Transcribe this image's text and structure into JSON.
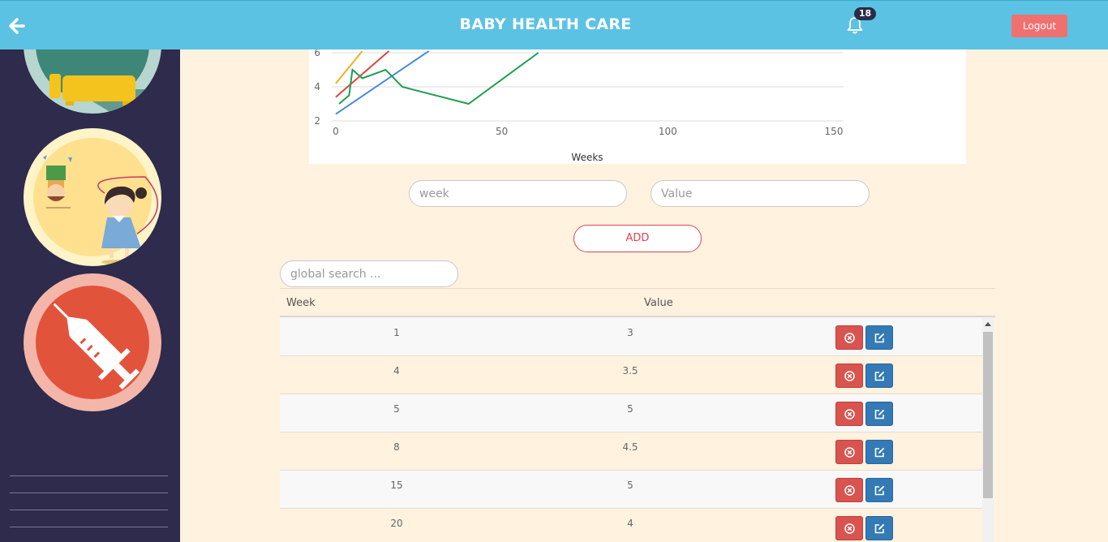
{
  "header": {
    "title": "BABY HEALTH CARE",
    "notification_count": "18",
    "logout_label": "Logout",
    "back_icon": "arrow-left-icon",
    "bell_icon": "bell-icon"
  },
  "sidebar": {
    "items": [
      {
        "name": "bed-category",
        "icon": "bed-icon"
      },
      {
        "name": "activity-category",
        "icon": "playing-children-icon"
      },
      {
        "name": "vaccine-category",
        "icon": "syringe-icon"
      }
    ]
  },
  "chart_data": {
    "type": "line",
    "xlabel": "Weeks",
    "ylabel": "",
    "x_ticks": [
      "0",
      "50",
      "100",
      "150"
    ],
    "y_ticks": [
      "2",
      "4",
      "6"
    ],
    "xlim": [
      0,
      150
    ],
    "ylim_visible": [
      2,
      6
    ],
    "grid": true,
    "series": [
      {
        "color": "#f0b020",
        "x": [
          0,
          8
        ],
        "y": [
          4.2,
          6.1
        ]
      },
      {
        "color": "#d9473c",
        "x": [
          0,
          16
        ],
        "y": [
          3.4,
          6.1
        ]
      },
      {
        "color": "#4a88e0",
        "x": [
          0,
          28
        ],
        "y": [
          2.4,
          6.1
        ]
      },
      {
        "color": "#1f9e50",
        "x": [
          1,
          4,
          5,
          8,
          15,
          20,
          40,
          61
        ],
        "y": [
          3,
          3.5,
          5,
          4.5,
          5,
          4,
          3,
          6
        ]
      }
    ]
  },
  "form": {
    "week_placeholder": "week",
    "value_placeholder": "Value",
    "add_label": "ADD",
    "search_placeholder": "global search ..."
  },
  "table": {
    "headers": {
      "week": "Week",
      "value": "Value"
    },
    "rows": [
      {
        "week": "1",
        "value": "3"
      },
      {
        "week": "4",
        "value": "3.5"
      },
      {
        "week": "5",
        "value": "5"
      },
      {
        "week": "8",
        "value": "4.5"
      },
      {
        "week": "15",
        "value": "5"
      },
      {
        "week": "20",
        "value": "4"
      }
    ]
  },
  "colors": {
    "header_bg": "#5bc2e4",
    "sidebar_bg": "#2e2b4c",
    "page_bg": "#fff2df",
    "delete_btn": "#d9534f",
    "edit_btn": "#337ab7",
    "logout_btn": "#f07070"
  }
}
